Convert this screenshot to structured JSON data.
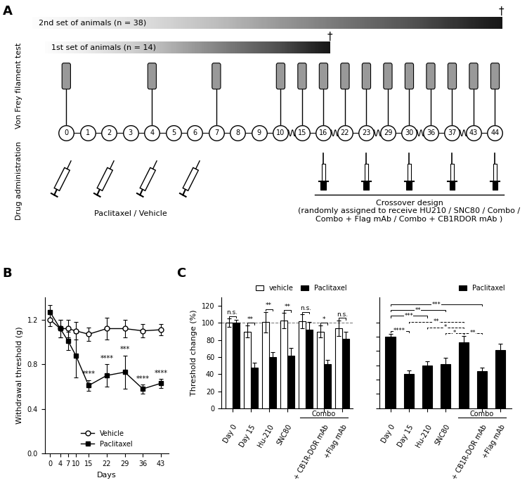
{
  "panel_labels": [
    "A",
    "B",
    "C"
  ],
  "timeline": {
    "animal_sets": [
      {
        "label": "2nd set of animals (n = 38)",
        "end_day": 44,
        "end_mark": "†"
      },
      {
        "label": "1st set of animals (n = 14)",
        "end_day": 16,
        "end_mark": "†"
      }
    ],
    "test_label": "Von Frey filament test",
    "drug_label": "Drug administration",
    "days": [
      0,
      1,
      2,
      3,
      4,
      5,
      6,
      7,
      8,
      9,
      10,
      15,
      16,
      22,
      23,
      29,
      30,
      36,
      37,
      43,
      44
    ],
    "test_days": [
      0,
      4,
      7,
      10,
      15,
      16,
      22,
      23,
      29,
      30,
      36,
      37,
      43,
      44
    ],
    "injection_days": [
      0,
      2,
      4,
      6
    ],
    "injection_label": "Paclitaxel / Vehicle",
    "treatment_days": [
      16,
      23,
      30,
      37,
      44
    ],
    "treatment_label": "Crossover design\n(randomly assigned to receive HU210 / SNC80 / Combo /\nCombo + Flag mAb / Combo + CB1RDOR mAb )"
  },
  "chart_data": [
    {
      "type": "line",
      "x": [
        0,
        4,
        7,
        10,
        15,
        22,
        29,
        36,
        43
      ],
      "xlabel": "Days",
      "ylabel": "Withdrawal threshold (g)",
      "xlim": [
        -2,
        46
      ],
      "xticks": [
        0,
        4,
        7,
        10,
        15,
        22,
        29,
        36,
        43
      ],
      "ylim": [
        0,
        1.4
      ],
      "yticks": [
        0.0,
        0.4,
        0.8,
        1.2
      ],
      "legend": "lower center",
      "series": [
        {
          "name": "Vehicle",
          "color": "#000000",
          "marker": "open_circle",
          "values": [
            1.2,
            1.12,
            1.12,
            1.1,
            1.07,
            1.12,
            1.12,
            1.1,
            1.11
          ],
          "errors": [
            0.06,
            0.08,
            0.08,
            0.08,
            0.06,
            0.1,
            0.08,
            0.06,
            0.05
          ]
        },
        {
          "name": "Paclitaxel",
          "color": "#000000",
          "marker": "filled_square",
          "values": [
            1.27,
            1.12,
            1.01,
            0.88,
            0.61,
            0.7,
            0.73,
            0.58,
            0.63
          ],
          "errors": [
            0.06,
            0.08,
            0.08,
            0.2,
            0.05,
            0.1,
            0.15,
            0.04,
            0.04
          ],
          "significance": [
            null,
            null,
            null,
            null,
            "****",
            "****",
            "***",
            "****",
            "****"
          ]
        }
      ]
    },
    {
      "type": "bar",
      "categories": [
        "Day 0",
        "Day 15",
        "Hu-210",
        "SNC80",
        null,
        "+ CB1R-DOR mAb",
        "+Flag mAb"
      ],
      "group": {
        "label": "Combo",
        "from": 4,
        "to": 6
      },
      "ylabel": "Threshold change (%)",
      "ylim": [
        0,
        130
      ],
      "yticks": [
        0,
        20,
        40,
        60,
        80,
        100,
        120
      ],
      "reference_line": 100,
      "legend": "upper right",
      "series": [
        {
          "name": "vehicle",
          "color": "#ffffff",
          "values": [
            100,
            90,
            101,
            103,
            102,
            90,
            94
          ],
          "errors": [
            5,
            7,
            12,
            9,
            8,
            7,
            9
          ]
        },
        {
          "name": "Paclitaxel",
          "color": "#000000",
          "values": [
            100,
            48,
            60,
            62,
            92,
            52,
            81
          ],
          "errors": [
            4,
            5,
            6,
            9,
            9,
            5,
            9
          ]
        }
      ],
      "significance": [
        "n.s.",
        "**",
        "**",
        "**",
        "n.s.",
        "*",
        "n.s."
      ]
    },
    {
      "type": "bar",
      "categories": [
        "Day 0",
        "Day 15",
        "Hu-210",
        "SNC80",
        null,
        "+ CB1R-DOR mAb",
        "+Flag mAb"
      ],
      "group": {
        "label": "Combo",
        "from": 4,
        "to": 6
      },
      "ylim": [
        0,
        155
      ],
      "yticks": [
        0,
        20,
        40,
        60,
        80,
        100,
        120
      ],
      "tick_labels": "x",
      "legend": "upper right",
      "series": [
        {
          "name": "Paclitaxel",
          "color": "#000000",
          "values": [
            100,
            48,
            60,
            62,
            92,
            52,
            81
          ],
          "errors": [
            4,
            5,
            6,
            9,
            9,
            5,
            9
          ]
        }
      ],
      "comparisons": [
        {
          "from": 4,
          "to": 5,
          "label": "**",
          "line_style": "dashed"
        },
        {
          "from": 3,
          "to": 4,
          "label": "*",
          "line_style": "dashed"
        },
        {
          "from": 2,
          "to": 4,
          "label": "*",
          "line_style": "dashed"
        },
        {
          "from": 1,
          "to": 4,
          "label": "**",
          "line_style": "dashed"
        },
        {
          "from": 0,
          "to": 1,
          "label": "****",
          "line_style": "solid"
        },
        {
          "from": 0,
          "to": 2,
          "label": "***",
          "line_style": "solid"
        },
        {
          "from": 0,
          "to": 3,
          "label": "**",
          "line_style": "solid"
        },
        {
          "from": 0,
          "to": 5,
          "label": "***",
          "line_style": "solid"
        }
      ]
    }
  ]
}
